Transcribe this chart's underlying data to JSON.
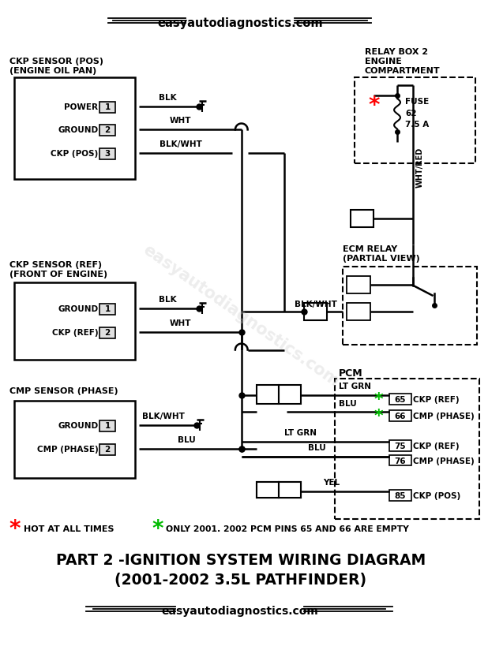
{
  "bg_color": "#ffffff",
  "title_line1": "PART 2 -IGNITION SYSTEM WIRING DIAGRAM",
  "title_line2": "(2001-2002 3.5L PATHFINDER)",
  "website": "easyautodiagnostics.com",
  "legend_red": "HOT AT ALL TIMES",
  "legend_green": "ONLY 2001. 2002 PCM PINS 65 AND 66 ARE EMPTY"
}
